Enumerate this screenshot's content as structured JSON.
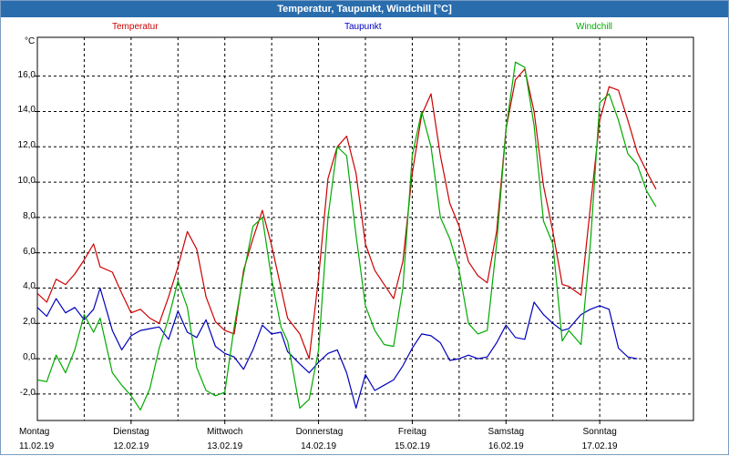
{
  "window": {
    "title": "Temperatur, Taupunkt, Windchill [°C]"
  },
  "colors": {
    "titlebar": "#2a6dad",
    "temperature": "#cc0000",
    "dewpoint": "#0000bb",
    "windchill": "#00aa00",
    "grid": "#000000"
  },
  "chart_data": {
    "type": "line",
    "title": "Temperatur, Taupunkt, Windchill [°C]",
    "ylabel": "°C",
    "xlabel": "",
    "ylim": [
      -3.5,
      18.2
    ],
    "yticks": [
      "-2,0",
      "0,0",
      "2,0",
      "4,0",
      "6,0",
      "8,0",
      "10,0",
      "12,0",
      "14,0",
      "16,0"
    ],
    "x_unit": "days",
    "xlim": [
      0,
      7.0
    ],
    "days": [
      {
        "weekday": "Montag",
        "date": "11.02.19"
      },
      {
        "weekday": "Dienstag",
        "date": "12.02.19"
      },
      {
        "weekday": "Mittwoch",
        "date": "13.02.19"
      },
      {
        "weekday": "Donnerstag",
        "date": "14.02.19"
      },
      {
        "weekday": "Freitag",
        "date": "15.02.19"
      },
      {
        "weekday": "Samstag",
        "date": "16.02.19"
      },
      {
        "weekday": "Sonntag",
        "date": "17.02.19"
      }
    ],
    "grid": true,
    "legend": "top",
    "series": [
      {
        "name": "Temperatur",
        "x": [
          0.0,
          0.1,
          0.2,
          0.3,
          0.4,
          0.5,
          0.6,
          0.67,
          0.8,
          0.9,
          1.0,
          1.1,
          1.2,
          1.3,
          1.4,
          1.5,
          1.6,
          1.7,
          1.8,
          1.9,
          2.0,
          2.1,
          2.2,
          2.3,
          2.4,
          2.5,
          2.6,
          2.67,
          2.8,
          2.9,
          3.0,
          3.1,
          3.2,
          3.3,
          3.4,
          3.5,
          3.6,
          3.7,
          3.8,
          3.9,
          4.0,
          4.1,
          4.2,
          4.3,
          4.4,
          4.5,
          4.6,
          4.7,
          4.8,
          4.9,
          5.0,
          5.1,
          5.2,
          5.3,
          5.4,
          5.5,
          5.6,
          5.67,
          5.8,
          5.9,
          6.0,
          6.1,
          6.2,
          6.3,
          6.4,
          6.5,
          6.6,
          6.67,
          6.8,
          6.9,
          6.97
        ],
        "y": [
          3.7,
          3.2,
          4.5,
          4.2,
          4.8,
          5.6,
          6.5,
          5.2,
          4.9,
          3.7,
          2.6,
          2.8,
          2.3,
          2.0,
          3.5,
          5.2,
          7.2,
          6.2,
          3.5,
          2.1,
          1.6,
          1.4,
          5.0,
          6.8,
          8.4,
          6.4,
          4.0,
          2.3,
          1.4,
          0.0,
          4.6,
          10.2,
          12.0,
          12.6,
          10.5,
          6.5,
          5.0,
          4.2,
          3.4,
          5.5,
          10.5,
          13.8,
          15.0,
          11.5,
          8.8,
          7.5,
          5.5,
          4.7,
          4.3,
          7.2,
          13.0,
          15.8,
          16.4,
          14.0,
          9.8,
          7.2,
          4.2,
          4.1,
          3.6,
          8.6,
          13.5,
          15.4,
          15.2,
          13.5,
          11.7,
          10.6,
          9.6,
          null,
          null,
          null,
          null
        ]
      },
      {
        "name": "Taupunkt",
        "x": [
          0.0,
          0.1,
          0.2,
          0.3,
          0.4,
          0.5,
          0.6,
          0.67,
          0.8,
          0.9,
          1.0,
          1.1,
          1.2,
          1.3,
          1.4,
          1.5,
          1.6,
          1.7,
          1.8,
          1.9,
          2.0,
          2.1,
          2.2,
          2.3,
          2.4,
          2.5,
          2.6,
          2.67,
          2.8,
          2.9,
          3.0,
          3.1,
          3.2,
          3.3,
          3.4,
          3.5,
          3.6,
          3.7,
          3.8,
          3.9,
          4.0,
          4.1,
          4.2,
          4.3,
          4.4,
          4.5,
          4.6,
          4.7,
          4.8,
          4.9,
          5.0,
          5.1,
          5.2,
          5.3,
          5.4,
          5.5,
          5.6,
          5.67,
          5.8,
          5.9,
          6.0,
          6.1,
          6.2,
          6.3,
          6.4,
          6.5,
          6.6,
          6.67,
          6.8,
          6.9,
          6.97
        ],
        "y": [
          2.9,
          2.4,
          3.4,
          2.6,
          2.9,
          2.2,
          2.8,
          4.0,
          1.6,
          0.5,
          1.3,
          1.6,
          1.7,
          1.8,
          1.1,
          2.7,
          1.5,
          1.2,
          2.2,
          0.7,
          0.3,
          0.1,
          -0.6,
          0.5,
          1.9,
          1.4,
          1.5,
          0.4,
          -0.3,
          -0.8,
          -0.2,
          0.3,
          0.5,
          -0.8,
          -2.8,
          -0.9,
          -1.8,
          -1.5,
          -1.2,
          -0.4,
          0.6,
          1.4,
          1.3,
          0.9,
          -0.1,
          0.0,
          0.2,
          0.0,
          0.1,
          0.9,
          1.9,
          1.2,
          1.1,
          3.2,
          2.5,
          2.0,
          1.6,
          1.7,
          2.5,
          2.8,
          3.0,
          2.8,
          0.6,
          0.1,
          0.0,
          null,
          null,
          null,
          null,
          null,
          null
        ]
      },
      {
        "name": "Windchill",
        "x": [
          0.0,
          0.1,
          0.2,
          0.3,
          0.4,
          0.5,
          0.6,
          0.67,
          0.8,
          0.9,
          1.0,
          1.1,
          1.2,
          1.3,
          1.4,
          1.5,
          1.6,
          1.7,
          1.8,
          1.9,
          2.0,
          2.1,
          2.2,
          2.3,
          2.4,
          2.5,
          2.6,
          2.67,
          2.8,
          2.9,
          3.0,
          3.1,
          3.2,
          3.3,
          3.4,
          3.5,
          3.6,
          3.7,
          3.8,
          3.9,
          4.0,
          4.1,
          4.2,
          4.3,
          4.4,
          4.5,
          4.6,
          4.7,
          4.8,
          4.9,
          5.0,
          5.1,
          5.2,
          5.3,
          5.4,
          5.5,
          5.6,
          5.67,
          5.8,
          5.9,
          6.0,
          6.1,
          6.2,
          6.3,
          6.4,
          6.5,
          6.6,
          6.67,
          6.8,
          6.9,
          6.97
        ],
        "y": [
          -1.2,
          -1.3,
          0.2,
          -0.8,
          0.5,
          2.5,
          1.5,
          2.3,
          -0.8,
          -1.5,
          -2.1,
          -2.9,
          -1.7,
          0.6,
          2.3,
          4.4,
          2.9,
          -0.5,
          -1.8,
          -2.1,
          -1.9,
          1.8,
          4.8,
          7.5,
          8.0,
          4.5,
          1.8,
          1.0,
          -2.8,
          -2.3,
          0.5,
          8.0,
          12.0,
          11.5,
          7.0,
          3.0,
          1.6,
          0.8,
          0.7,
          4.0,
          11.5,
          14.0,
          12.0,
          8.0,
          6.8,
          5.0,
          2.0,
          1.4,
          1.6,
          6.5,
          13.0,
          16.8,
          16.5,
          13.2,
          7.8,
          6.5,
          1.0,
          1.6,
          0.8,
          6.5,
          14.5,
          15.0,
          13.5,
          11.6,
          11.0,
          9.5,
          8.6,
          null,
          null,
          null,
          null
        ]
      }
    ]
  }
}
